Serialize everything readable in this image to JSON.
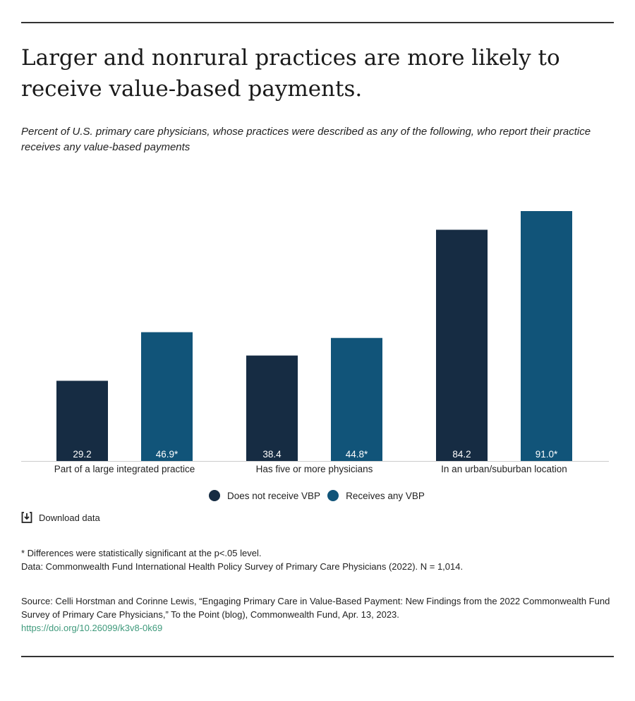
{
  "title": "Larger and nonrural practices are more likely to receive value-based payments.",
  "subtitle": "Percent of U.S. primary care physicians, whose practices were described as any of the following, who report their practice receives any value-based payments",
  "chart_data": {
    "type": "bar",
    "categories": [
      "Part of a large integrated practice",
      "Has five or more physicians",
      "In an urban/suburban location"
    ],
    "series": [
      {
        "name": "Does not receive VBP",
        "values": [
          29.2,
          38.4,
          84.2
        ],
        "labels": [
          "29.2",
          "38.4",
          "84.2"
        ],
        "color": "#162c43"
      },
      {
        "name": "Receives any VBP",
        "values": [
          46.9,
          44.8,
          91.0
        ],
        "labels": [
          "46.9*",
          "44.8*",
          "91.0*"
        ],
        "color": "#115479"
      }
    ],
    "ylim": [
      0,
      100
    ],
    "grid": false,
    "legend_position": "bottom"
  },
  "download_label": "Download data",
  "notes": [
    "* Differences were statistically significant at the p<.05 level.",
    "Data: Commonwealth Fund International Health Policy Survey of Primary Care Physicians (2022). N = 1,014."
  ],
  "source_text": "Source: Celli Horstman and Corinne Lewis, “Engaging Primary Care in Value-Based Payment: New Findings from the 2022 Commonwealth Fund Survey of Primary Care Physicians,” To the Point (blog), Commonwealth Fund, Apr. 13, 2023.",
  "source_link": "https://doi.org/10.26099/k3v8-0k69",
  "link_color": "#3f9a7c"
}
